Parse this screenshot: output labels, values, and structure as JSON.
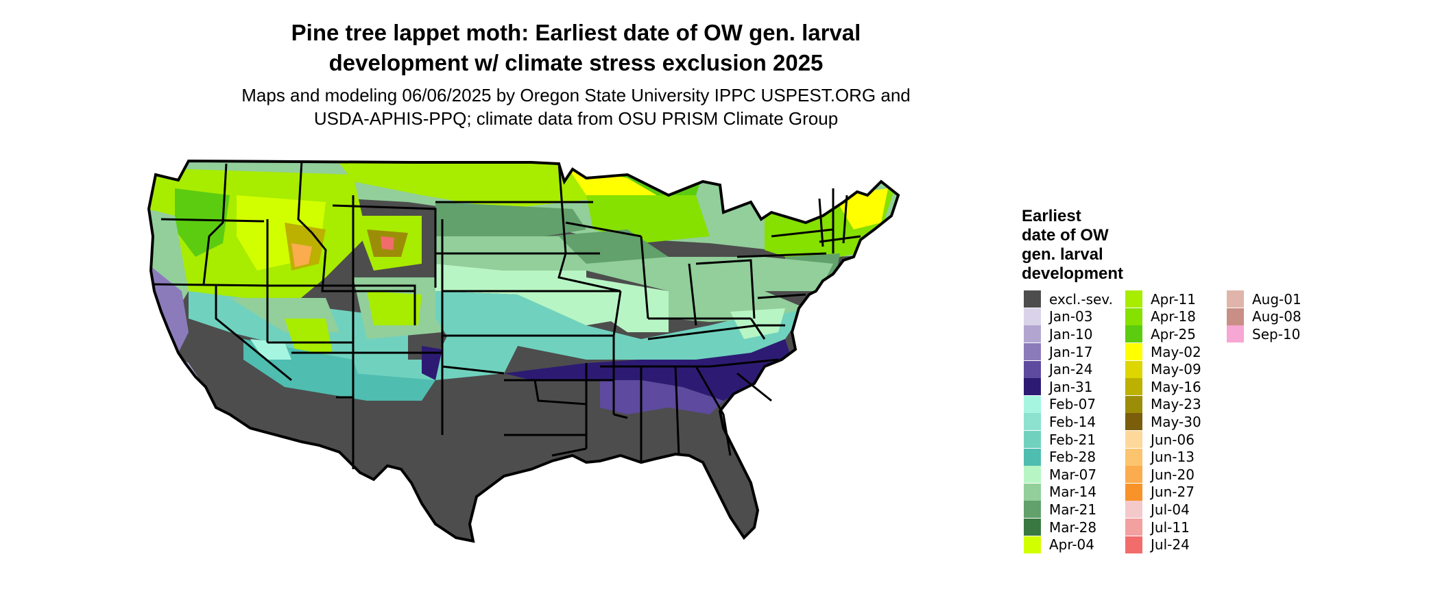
{
  "title_line1": "Pine tree lappet moth: Earliest date of OW gen. larval",
  "title_line2": "development w/ climate stress exclusion 2025",
  "subtitle_line1": "Maps and modeling 06/06/2025 by Oregon State University IPPC USPEST.ORG and",
  "subtitle_line2": "USDA-APHIS-PPQ; climate data from OSU PRISM Climate Group",
  "legend": {
    "title_lines": [
      "Earliest",
      "date of OW",
      "gen. larval",
      "development"
    ],
    "items": [
      {
        "label": "excl.-sev.",
        "color": "#4d4d4d"
      },
      {
        "label": "Jan-03",
        "color": "#d9d3ea"
      },
      {
        "label": "Jan-10",
        "color": "#b2a6d0"
      },
      {
        "label": "Jan-17",
        "color": "#8c7bbb"
      },
      {
        "label": "Jan-24",
        "color": "#5e4a9e"
      },
      {
        "label": "Jan-31",
        "color": "#2d1b73"
      },
      {
        "label": "Feb-07",
        "color": "#a6f5e1"
      },
      {
        "label": "Feb-14",
        "color": "#8ce2cf"
      },
      {
        "label": "Feb-21",
        "color": "#70d2be"
      },
      {
        "label": "Feb-28",
        "color": "#4fbdb0"
      },
      {
        "label": "Mar-07",
        "color": "#b8f5c4"
      },
      {
        "label": "Mar-14",
        "color": "#92cf9b"
      },
      {
        "label": "Mar-21",
        "color": "#62a06c"
      },
      {
        "label": "Mar-28",
        "color": "#3a7841"
      },
      {
        "label": "Apr-04",
        "color": "#d2ff00"
      },
      {
        "label": "Apr-11",
        "color": "#a8ec00"
      },
      {
        "label": "Apr-18",
        "color": "#86e000"
      },
      {
        "label": "Apr-25",
        "color": "#5ccc11"
      },
      {
        "label": "May-02",
        "color": "#ffff00"
      },
      {
        "label": "May-09",
        "color": "#ddd600"
      },
      {
        "label": "May-16",
        "color": "#bcb000"
      },
      {
        "label": "May-23",
        "color": "#9c8d08"
      },
      {
        "label": "May-30",
        "color": "#7a5e0c"
      },
      {
        "label": "Jun-06",
        "color": "#fdd89a"
      },
      {
        "label": "Jun-13",
        "color": "#fcc46e"
      },
      {
        "label": "Jun-20",
        "color": "#fbac4f"
      },
      {
        "label": "Jun-27",
        "color": "#f8932a"
      },
      {
        "label": "Jul-04",
        "color": "#f3c9c9"
      },
      {
        "label": "Jul-11",
        "color": "#f2a0a0"
      },
      {
        "label": "Jul-24",
        "color": "#f26c6c"
      },
      {
        "label": "Aug-01",
        "color": "#e0b4aa"
      },
      {
        "label": "Aug-08",
        "color": "#c98f86"
      },
      {
        "label": "Sep-10",
        "color": "#f7a7d3"
      }
    ]
  }
}
